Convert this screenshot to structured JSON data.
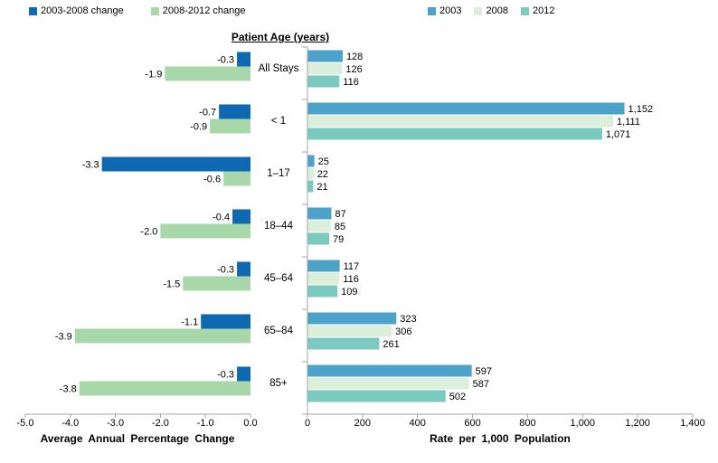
{
  "header": {
    "patient_age_label": "Patient Age (years)"
  },
  "colors": {
    "change_2003_2008": "#0E68B2",
    "change_2008_2012": "#A8D7AA",
    "rate_2003": "#4CA2C9",
    "rate_2008": "#DCEFDA",
    "rate_2012": "#7BCAC0",
    "axis_gray": "#A6A6A6",
    "text": "#000000"
  },
  "chart_data": [
    {
      "type": "bar",
      "orientation": "horizontal",
      "title": "",
      "xlabel": "Average Annual Percentage Change",
      "ylabel": "",
      "xlim": [
        -5.0,
        0.0
      ],
      "grid": false,
      "legend_position": "top-left",
      "categories": [
        "All Stays",
        "< 1",
        "1–17",
        "18–44",
        "45–64",
        "65–84",
        "85+"
      ],
      "xticks": [
        {
          "label": "-5.0",
          "value": -5.0
        },
        {
          "label": "-4.0",
          "value": -4.0
        },
        {
          "label": "-3.0",
          "value": -3.0
        },
        {
          "label": "-2.0",
          "value": -2.0
        },
        {
          "label": "-1.0",
          "value": -1.0
        },
        {
          "label": "0.0",
          "value": 0.0
        }
      ],
      "series": [
        {
          "name": "2003-2008 change",
          "color": "#0E68B2",
          "values": [
            -0.3,
            -0.7,
            -3.3,
            -0.4,
            -0.3,
            -1.1,
            -0.3
          ],
          "labels": [
            "-0.3",
            "-0.7",
            "-3.3",
            "-0.4",
            "-0.3",
            "-1.1",
            "-0.3"
          ]
        },
        {
          "name": "2008-2012 change",
          "color": "#A8D7AA",
          "values": [
            -1.9,
            -0.9,
            -0.6,
            -2.0,
            -1.5,
            -3.9,
            -3.8
          ],
          "labels": [
            "-1.9",
            "-0.9",
            "-0.6",
            "-2.0",
            "-1.5",
            "-3.9",
            "-3.8"
          ]
        }
      ]
    },
    {
      "type": "bar",
      "orientation": "horizontal",
      "title": "",
      "xlabel": "Rate per 1,000 Population",
      "ylabel": "",
      "xlim": [
        0,
        1400
      ],
      "grid": false,
      "legend_position": "top",
      "categories": [
        "All Stays",
        "< 1",
        "1–17",
        "18–44",
        "45–64",
        "65–84",
        "85+"
      ],
      "xticks": [
        {
          "label": "0",
          "value": 0
        },
        {
          "label": "200",
          "value": 200
        },
        {
          "label": "400",
          "value": 400
        },
        {
          "label": "600",
          "value": 600
        },
        {
          "label": "800",
          "value": 800
        },
        {
          "label": "1,000",
          "value": 1000
        },
        {
          "label": "1,200",
          "value": 1200
        },
        {
          "label": "1,400",
          "value": 1400
        }
      ],
      "series": [
        {
          "name": "2003",
          "color": "#4CA2C9",
          "values": [
            128,
            1152,
            25,
            87,
            117,
            323,
            597
          ],
          "labels": [
            "128",
            "1,152",
            "25",
            "87",
            "117",
            "323",
            "597"
          ]
        },
        {
          "name": "2008",
          "color": "#DCEFDA",
          "values": [
            126,
            1111,
            22,
            85,
            116,
            306,
            587
          ],
          "labels": [
            "126",
            "1,111",
            "22",
            "85",
            "116",
            "306",
            "587"
          ]
        },
        {
          "name": "2012",
          "color": "#7BCAC0",
          "values": [
            116,
            1071,
            21,
            79,
            109,
            261,
            502
          ],
          "labels": [
            "116",
            "1,071",
            "21",
            "79",
            "109",
            "261",
            "502"
          ]
        }
      ]
    }
  ]
}
